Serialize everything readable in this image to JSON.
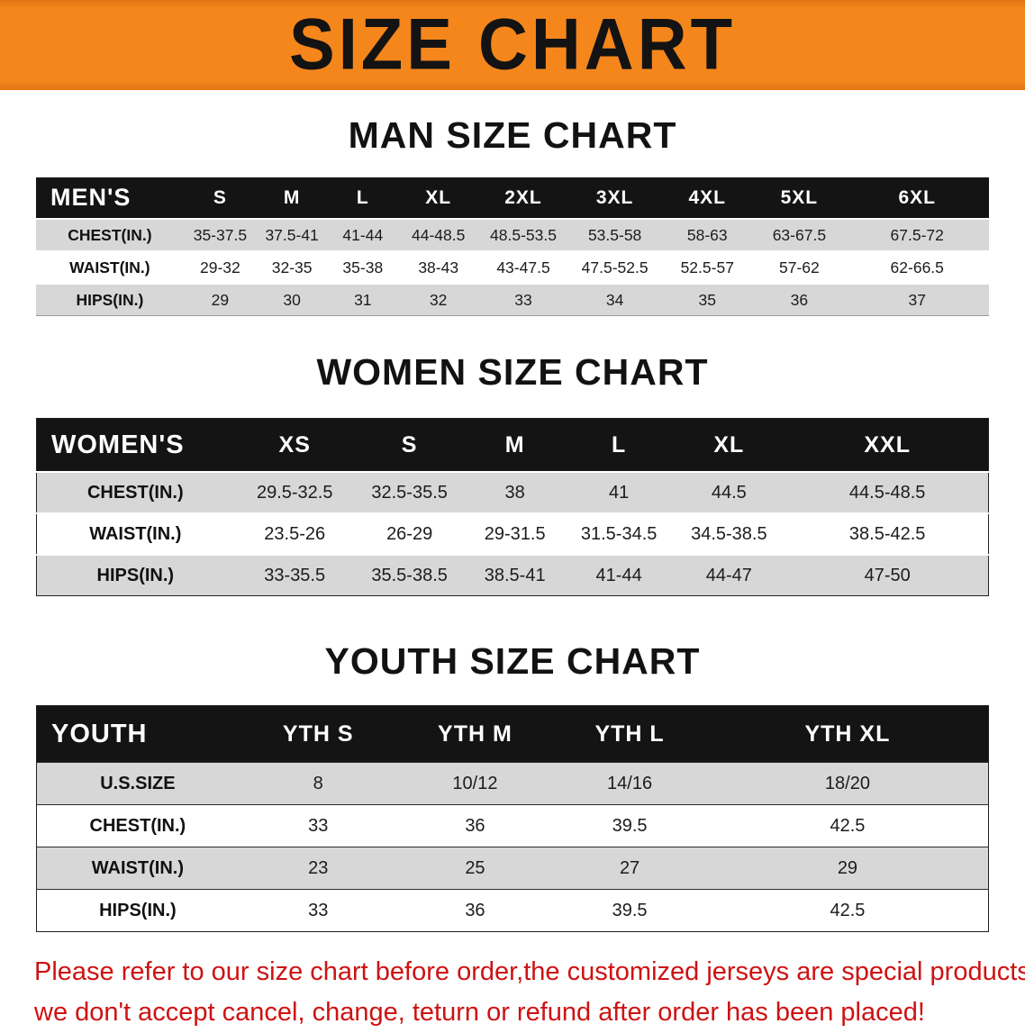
{
  "banner": {
    "title": "SIZE CHART",
    "bg_color": "#f5861c",
    "text_color": "#131313"
  },
  "chart_data": [
    {
      "type": "table",
      "title": "MAN SIZE CHART",
      "corner_label": "MEN'S",
      "columns": [
        "S",
        "M",
        "L",
        "XL",
        "2XL",
        "3XL",
        "4XL",
        "5XL",
        "6XL"
      ],
      "rows": [
        {
          "label": "CHEST(IN.)",
          "values": [
            "35-37.5",
            "37.5-41",
            "41-44",
            "44-48.5",
            "48.5-53.5",
            "53.5-58",
            "58-63",
            "63-67.5",
            "67.5-72"
          ]
        },
        {
          "label": "WAIST(IN.)",
          "values": [
            "29-32",
            "32-35",
            "35-38",
            "38-43",
            "43-47.5",
            "47.5-52.5",
            "52.5-57",
            "57-62",
            "62-66.5"
          ]
        },
        {
          "label": "HIPS(IN.)",
          "values": [
            "29",
            "30",
            "31",
            "32",
            "33",
            "34",
            "35",
            "36",
            "37"
          ]
        }
      ]
    },
    {
      "type": "table",
      "title": "WOMEN SIZE CHART",
      "corner_label": "WOMEN'S",
      "columns": [
        "XS",
        "S",
        "M",
        "L",
        "XL",
        "XXL"
      ],
      "rows": [
        {
          "label": "CHEST(IN.)",
          "values": [
            "29.5-32.5",
            "32.5-35.5",
            "38",
            "41",
            "44.5",
            "44.5-48.5"
          ]
        },
        {
          "label": "WAIST(IN.)",
          "values": [
            "23.5-26",
            "26-29",
            "29-31.5",
            "31.5-34.5",
            "34.5-38.5",
            "38.5-42.5"
          ]
        },
        {
          "label": "HIPS(IN.)",
          "values": [
            "33-35.5",
            "35.5-38.5",
            "38.5-41",
            "41-44",
            "44-47",
            "47-50"
          ]
        }
      ]
    },
    {
      "type": "table",
      "title": "YOUTH SIZE CHART",
      "corner_label": "YOUTH",
      "columns": [
        "YTH S",
        "YTH M",
        "YTH L",
        "YTH XL"
      ],
      "rows": [
        {
          "label": "U.S.SIZE",
          "values": [
            "8",
            "10/12",
            "14/16",
            "18/20"
          ]
        },
        {
          "label": "CHEST(IN.)",
          "values": [
            "33",
            "36",
            "39.5",
            "42.5"
          ]
        },
        {
          "label": "WAIST(IN.)",
          "values": [
            "23",
            "25",
            "27",
            "29"
          ]
        },
        {
          "label": "HIPS(IN.)",
          "values": [
            "33",
            "36",
            "39.5",
            "42.5"
          ]
        }
      ]
    }
  ],
  "note": {
    "color": "#ce1212",
    "lines": [
      "Please refer to our size chart before order,the customized jerseys are special products,",
      "we don't accept cancel, change, teturn or refund after order has been placed!"
    ]
  }
}
